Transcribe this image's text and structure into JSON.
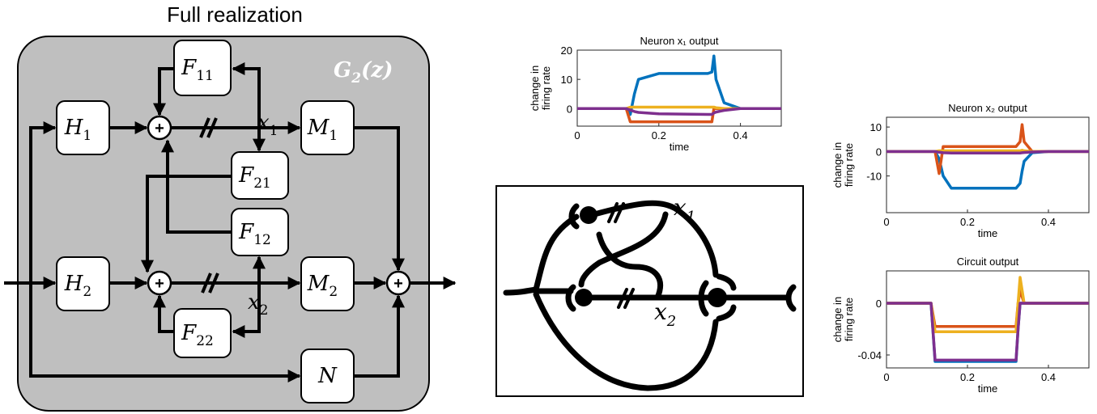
{
  "diagram": {
    "title": "Full realization",
    "system": {
      "base": "G",
      "sub": "2",
      "rest": "(z)"
    },
    "blocks": [
      {
        "base": "F",
        "sub": "11"
      },
      {
        "base": "H",
        "sub": "1"
      },
      {
        "base": "M",
        "sub": "1"
      },
      {
        "base": "F",
        "sub": "21"
      },
      {
        "base": "F",
        "sub": "12"
      },
      {
        "base": "H",
        "sub": "2"
      },
      {
        "base": "M",
        "sub": "2"
      },
      {
        "base": "F",
        "sub": "22"
      },
      {
        "base": "N"
      }
    ],
    "signals": [
      {
        "base": "x",
        "sub": "1"
      },
      {
        "base": "x",
        "sub": "2"
      }
    ]
  },
  "circuit": {
    "labels": [
      {
        "base": "x",
        "sub": "1"
      },
      {
        "base": "x",
        "sub": "2"
      }
    ]
  },
  "chart_data": [
    {
      "type": "line",
      "title": "Neuron x₁ output",
      "ylabel": [
        "change in",
        "firing rate"
      ],
      "xlabel": "time",
      "xlim": [
        0,
        0.5
      ],
      "xticks": [
        0,
        0.2,
        0.4
      ],
      "ylim": [
        -6,
        20
      ],
      "yticks": [
        0,
        10,
        20
      ],
      "x": [
        0,
        0.12,
        0.13,
        0.14,
        0.15,
        0.2,
        0.32,
        0.33,
        0.335,
        0.34,
        0.36,
        0.4,
        0.5
      ],
      "series": [
        {
          "color": "#0072BD",
          "values": [
            0,
            0,
            -2,
            5,
            10,
            12,
            12,
            12.5,
            18,
            10,
            2,
            0,
            0
          ]
        },
        {
          "color": "#D95319",
          "values": [
            0,
            0,
            -4.5,
            -4.5,
            -4.5,
            -4.5,
            -4.5,
            -4.5,
            0,
            0,
            0,
            0,
            0
          ]
        },
        {
          "color": "#EDB120",
          "values": [
            0,
            0,
            0.5,
            0.5,
            0.5,
            0.5,
            0.5,
            0.5,
            0.5,
            0.3,
            0,
            0,
            0
          ]
        },
        {
          "color": "#7E2F8E",
          "values": [
            0,
            0,
            -0.5,
            -1,
            -1.3,
            -1.8,
            -2,
            -2,
            -1.5,
            -1.2,
            -0.6,
            0,
            0
          ]
        }
      ]
    },
    {
      "type": "line",
      "title": "Neuron x₂ output",
      "ylabel": [
        "change in",
        "firing rate"
      ],
      "xlabel": "time",
      "xlim": [
        0,
        0.5
      ],
      "xticks": [
        0,
        0.2,
        0.4
      ],
      "ylim": [
        -25,
        14
      ],
      "yticks": [
        -10,
        0,
        10
      ],
      "x": [
        0,
        0.12,
        0.13,
        0.14,
        0.16,
        0.2,
        0.32,
        0.33,
        0.335,
        0.34,
        0.36,
        0.4,
        0.5
      ],
      "series": [
        {
          "color": "#0072BD",
          "values": [
            0,
            0,
            -3,
            -10,
            -15,
            -15,
            -15,
            -13,
            -8,
            -4,
            -0.5,
            0,
            0
          ]
        },
        {
          "color": "#D95319",
          "values": [
            0,
            0,
            -9,
            2,
            2,
            2,
            2,
            4,
            11,
            4,
            0,
            0,
            0
          ]
        },
        {
          "color": "#EDB120",
          "values": [
            0,
            0,
            0.3,
            0.3,
            0.3,
            0.3,
            0.3,
            0.3,
            0.5,
            0.3,
            0,
            0,
            0
          ]
        },
        {
          "color": "#7E2F8E",
          "values": [
            0,
            0,
            -0.3,
            -0.5,
            -0.6,
            -0.6,
            -0.6,
            -0.6,
            -0.5,
            -0.4,
            -0.2,
            0,
            0
          ]
        }
      ]
    },
    {
      "type": "line",
      "title": "Circuit output",
      "ylabel": [
        "change in",
        "firing rate"
      ],
      "xlabel": "time",
      "xlim": [
        0,
        0.5
      ],
      "xticks": [
        0,
        0.2,
        0.4
      ],
      "ylim": [
        -0.05,
        0.025
      ],
      "yticks": [
        0,
        -0.04
      ],
      "x": [
        0,
        0.11,
        0.12,
        0.32,
        0.325,
        0.33,
        0.34,
        0.5
      ],
      "series": [
        {
          "color": "#0072BD",
          "values": [
            0,
            0,
            -0.045,
            -0.045,
            -0.02,
            0,
            0,
            0
          ]
        },
        {
          "color": "#D95319",
          "values": [
            0,
            0,
            -0.018,
            -0.018,
            0,
            0.01,
            0,
            0
          ]
        },
        {
          "color": "#EDB120",
          "values": [
            0,
            0,
            -0.022,
            -0.022,
            0,
            0.02,
            0,
            0
          ]
        },
        {
          "color": "#7E2F8E",
          "values": [
            0,
            0,
            -0.044,
            -0.044,
            -0.02,
            0,
            0,
            0
          ]
        }
      ]
    }
  ]
}
